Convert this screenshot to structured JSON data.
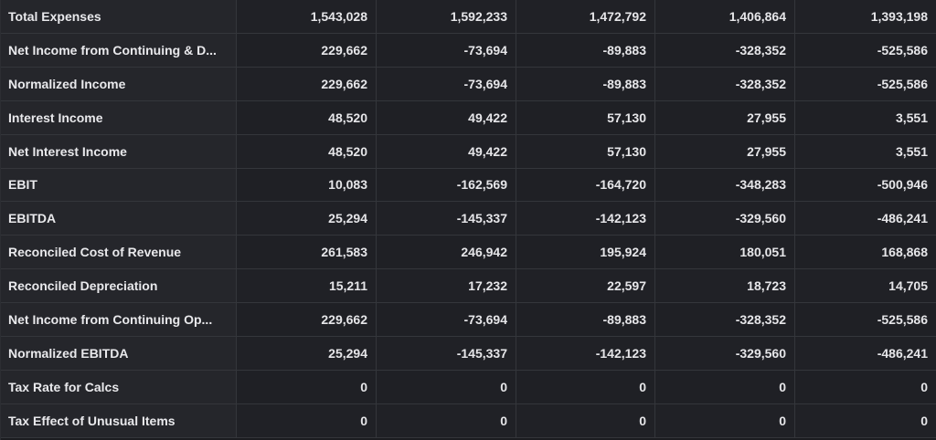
{
  "table": {
    "rows": [
      {
        "label": "Total Expenses",
        "values": [
          "1,543,028",
          "1,592,233",
          "1,472,792",
          "1,406,864",
          "1,393,198"
        ]
      },
      {
        "label": "Net Income from Continuing & D...",
        "values": [
          "229,662",
          "-73,694",
          "-89,883",
          "-328,352",
          "-525,586"
        ]
      },
      {
        "label": "Normalized Income",
        "values": [
          "229,662",
          "-73,694",
          "-89,883",
          "-328,352",
          "-525,586"
        ]
      },
      {
        "label": "Interest Income",
        "values": [
          "48,520",
          "49,422",
          "57,130",
          "27,955",
          "3,551"
        ]
      },
      {
        "label": "Net Interest Income",
        "values": [
          "48,520",
          "49,422",
          "57,130",
          "27,955",
          "3,551"
        ]
      },
      {
        "label": "EBIT",
        "values": [
          "10,083",
          "-162,569",
          "-164,720",
          "-348,283",
          "-500,946"
        ]
      },
      {
        "label": "EBITDA",
        "values": [
          "25,294",
          "-145,337",
          "-142,123",
          "-329,560",
          "-486,241"
        ]
      },
      {
        "label": "Reconciled Cost of Revenue",
        "values": [
          "261,583",
          "246,942",
          "195,924",
          "180,051",
          "168,868"
        ]
      },
      {
        "label": "Reconciled Depreciation",
        "values": [
          "15,211",
          "17,232",
          "22,597",
          "18,723",
          "14,705"
        ]
      },
      {
        "label": "Net Income from Continuing Op...",
        "values": [
          "229,662",
          "-73,694",
          "-89,883",
          "-328,352",
          "-525,586"
        ]
      },
      {
        "label": "Normalized EBITDA",
        "values": [
          "25,294",
          "-145,337",
          "-142,123",
          "-329,560",
          "-486,241"
        ]
      },
      {
        "label": "Tax Rate for Calcs",
        "values": [
          "0",
          "0",
          "0",
          "0",
          "0"
        ]
      },
      {
        "label": "Tax Effect of Unusual Items",
        "values": [
          "0",
          "0",
          "0",
          "0",
          "0"
        ]
      }
    ]
  }
}
